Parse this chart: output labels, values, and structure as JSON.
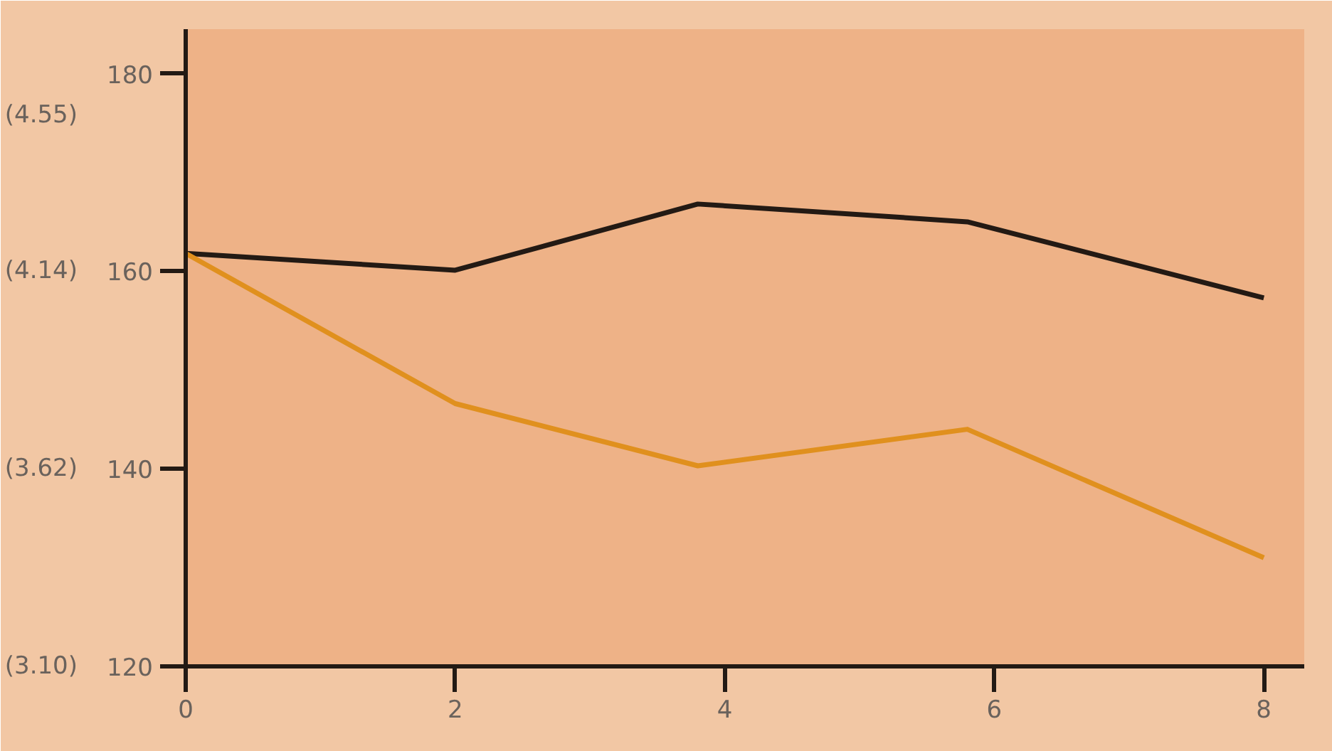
{
  "chart_data": {
    "type": "line",
    "xlim": [
      0,
      8.3
    ],
    "ylim": [
      120,
      184.5
    ],
    "xticks": [
      0,
      2,
      4,
      6,
      8
    ],
    "yticks": [
      120,
      140,
      160,
      180
    ],
    "y2lim": [
      3.1,
      4.777
    ],
    "y2ticks": [
      {
        "value": 3.1,
        "label": "(3.10)"
      },
      {
        "value": 3.62,
        "label": "(3.62)"
      },
      {
        "value": 4.14,
        "label": "(4.14)"
      },
      {
        "value": 4.55,
        "label": "(4.55)"
      }
    ],
    "series": [
      {
        "color": "#231a14",
        "x": [
          0,
          2,
          3.8,
          5.8,
          8
        ],
        "values": [
          161.8,
          160.1,
          166.8,
          165,
          157.3
        ]
      },
      {
        "color": "#e0901e",
        "x": [
          0,
          2,
          3.8,
          5.8,
          8
        ],
        "values": [
          161.8,
          146.6,
          140.3,
          144,
          131
        ]
      }
    ],
    "grid": false,
    "line_style": "solid"
  }
}
